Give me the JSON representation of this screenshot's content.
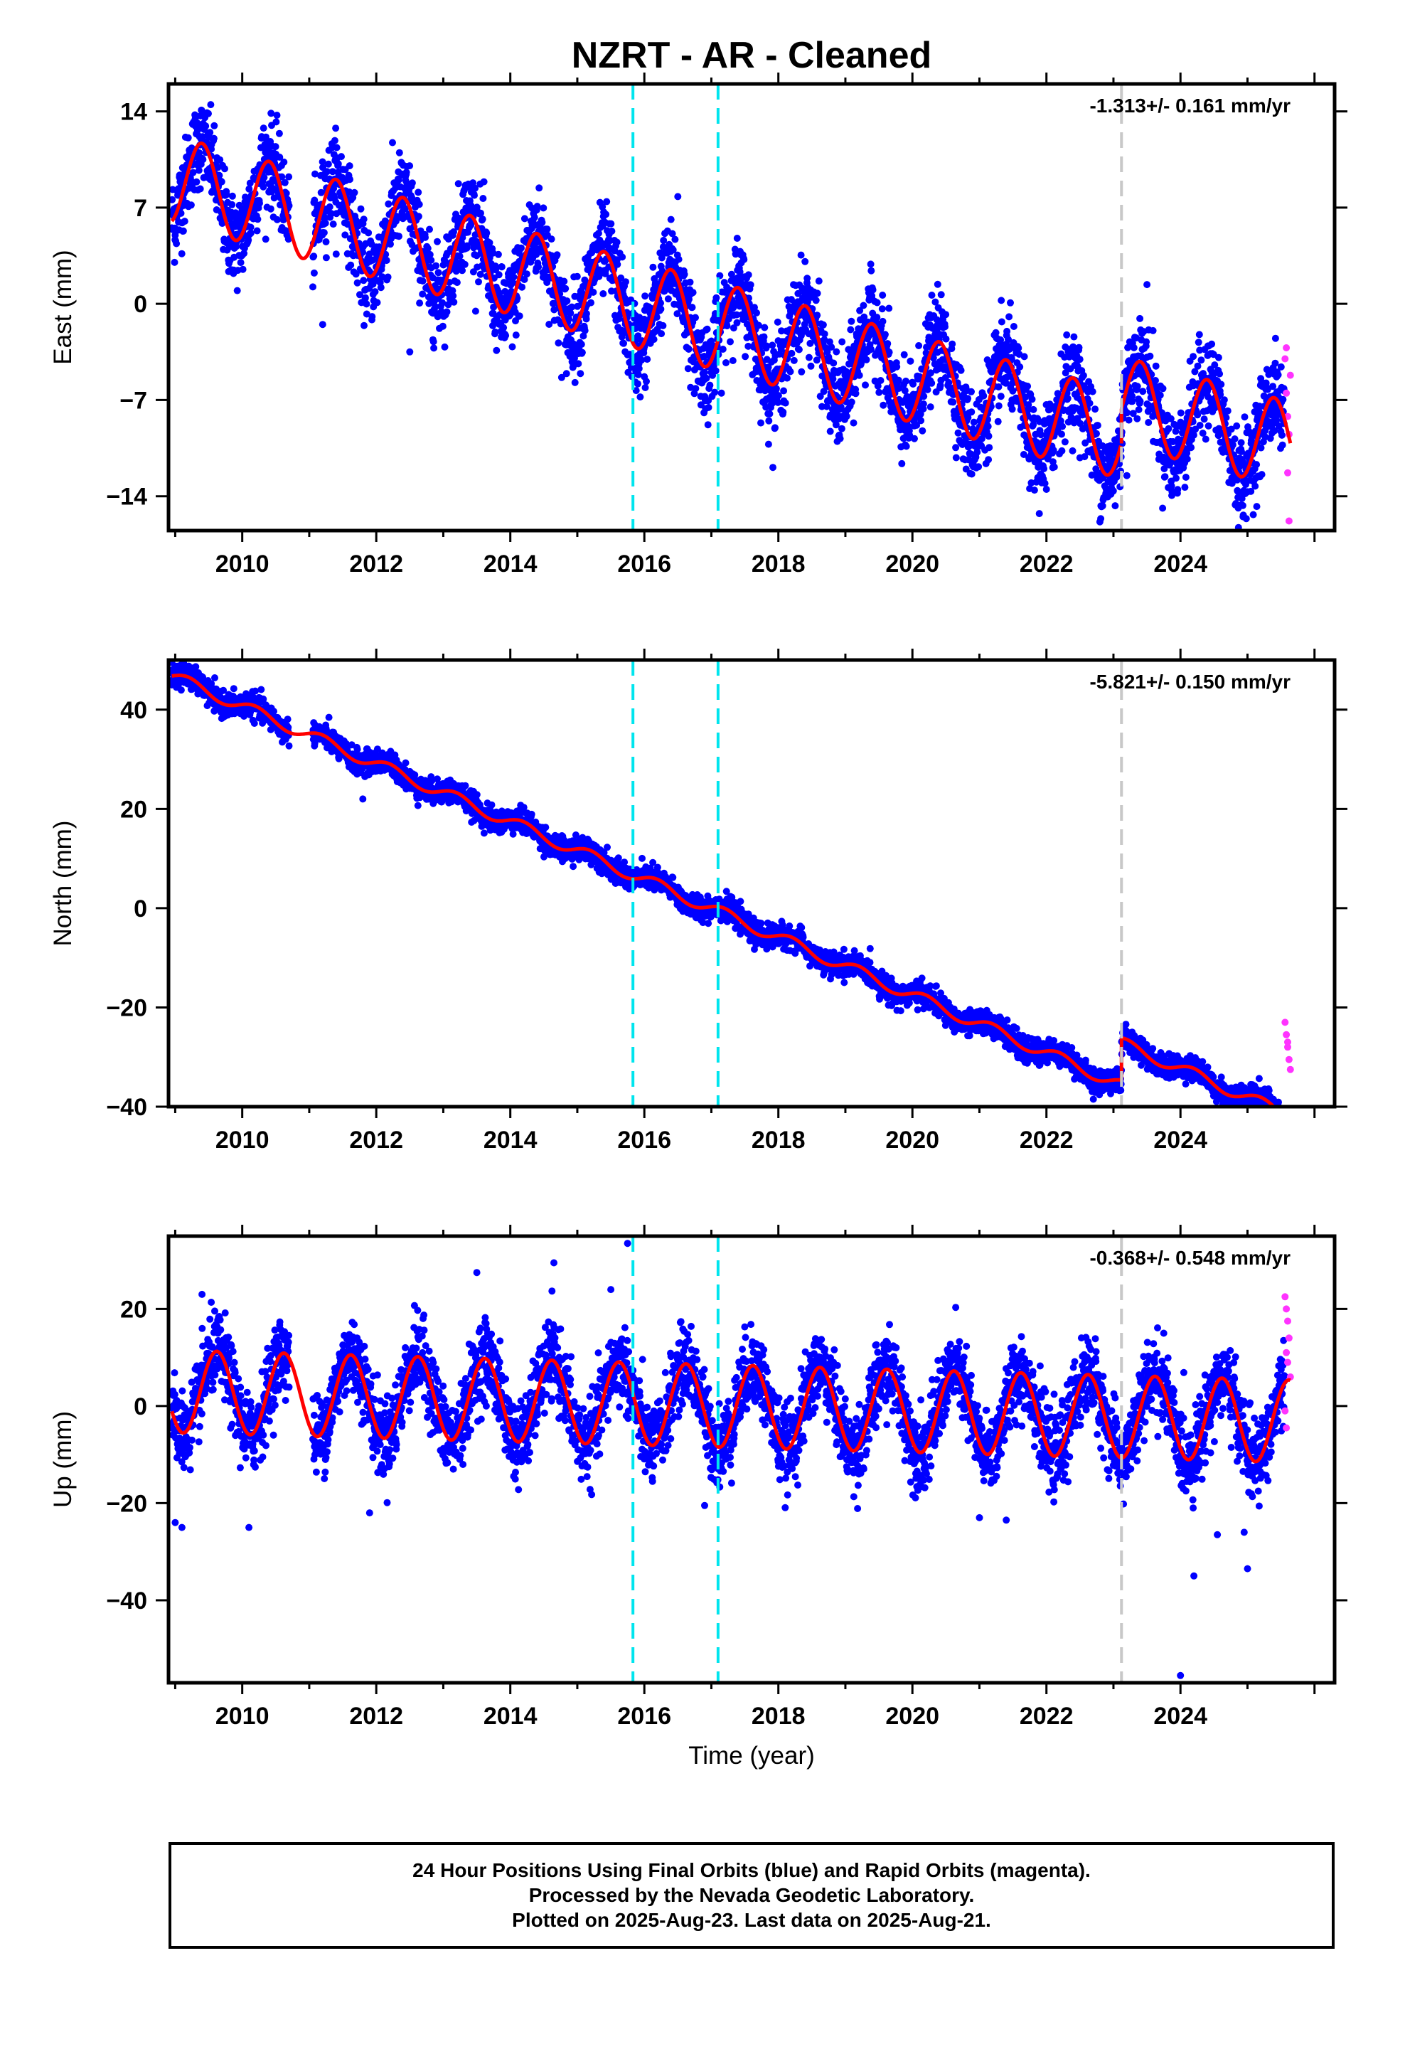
{
  "title": "NZRT  - AR - Cleaned",
  "x_axis_title": "Time (year)",
  "colors": {
    "final_orbits": "#0000ff",
    "rapid_orbits": "#ff33ff",
    "model_fit": "#ff0000",
    "equipment_change": "#00e5ee",
    "earthquake_offset": "#c8c8c8",
    "frame": "#000000"
  },
  "footer": {
    "line1": "24 Hour Positions Using Final Orbits (blue) and Rapid Orbits (magenta).",
    "line2": "Processed by the Nevada Geodetic Laboratory.",
    "line3": "Plotted on 2025-Aug-23. Last data on 2025-Aug-21."
  },
  "chart_data": [
    {
      "type": "scatter",
      "panel": "East",
      "ylabel": "East (mm)",
      "xlabel": "",
      "rate_label": "-1.313+/- 0.161 mm/yr",
      "xlim": [
        2008.9,
        2026.3
      ],
      "ylim": [
        -16.5,
        16
      ],
      "x_ticks": [
        2010,
        2012,
        2014,
        2016,
        2018,
        2020,
        2022,
        2024
      ],
      "y_ticks": [
        14,
        7,
        0,
        -7,
        -14
      ],
      "y_tick_labels": [
        "14",
        "7",
        "0",
        "−7",
        "−14"
      ],
      "vlines_cyan_dashed": [
        2015.83,
        2017.1
      ],
      "vlines_gray_dashed": [
        2023.12
      ],
      "data_start": 2008.95,
      "data_end": 2025.64,
      "gap": [
        2010.7,
        2011.05
      ],
      "rapid_start": 2025.55,
      "model": {
        "rate": -1.313,
        "intercept_year": 2009.0,
        "intercept": 9.0,
        "annual_amplitude": 3.2,
        "annual_peak": 0.4,
        "step_year": 2023.12,
        "step": 2.5
      },
      "scatter_sigma": 1.6,
      "outliers": [
        [
          2009.0,
          5.0
        ],
        [
          2011.2,
          -1.5
        ],
        [
          2012.5,
          -3.5
        ],
        [
          2016.0,
          -5.3
        ],
        [
          2016.5,
          7.8
        ],
        [
          2016.95,
          -8.8
        ],
        [
          2022.0,
          -13.5
        ],
        [
          2022.5,
          -11.2
        ],
        [
          2023.2,
          -12.5
        ],
        [
          2023.5,
          1.4
        ]
      ],
      "rapid_points": [
        [
          2025.56,
          -4.0
        ],
        [
          2025.58,
          -6.5
        ],
        [
          2025.6,
          -8.2
        ],
        [
          2025.62,
          -9.5
        ],
        [
          2025.6,
          -12.3
        ],
        [
          2025.62,
          -15.8
        ],
        [
          2025.64,
          -5.2
        ],
        [
          2025.58,
          -3.2
        ]
      ]
    },
    {
      "type": "scatter",
      "panel": "North",
      "ylabel": "North (mm)",
      "xlabel": "",
      "rate_label": "-5.821+/- 0.150 mm/yr",
      "xlim": [
        2008.9,
        2026.3
      ],
      "ylim": [
        -40,
        50
      ],
      "x_ticks": [
        2010,
        2012,
        2014,
        2016,
        2018,
        2020,
        2022,
        2024
      ],
      "y_ticks": [
        40,
        20,
        0,
        -20,
        -40
      ],
      "y_tick_labels": [
        "40",
        "20",
        "0",
        "−20",
        "−40"
      ],
      "vlines_cyan_dashed": [
        2015.83,
        2017.1
      ],
      "vlines_gray_dashed": [
        2023.12
      ],
      "data_start": 2008.95,
      "data_end": 2025.64,
      "gap": [
        2010.7,
        2011.05
      ],
      "rapid_start": 2025.55,
      "model": {
        "rate": -5.821,
        "intercept_year": 2009.0,
        "intercept": 46.5,
        "annual_amplitude": 1.2,
        "annual_peak": 0.2,
        "step_year": 2023.12,
        "step": 8.5
      },
      "scatter_sigma": 1.2,
      "outliers": [
        [
          2022.7,
          -38.5
        ],
        [
          2011.8,
          22.0
        ],
        [
          2008.95,
          49.5
        ]
      ],
      "rapid_points": [
        [
          2025.56,
          -23.0
        ],
        [
          2025.58,
          -25.5
        ],
        [
          2025.6,
          -28.0
        ],
        [
          2025.62,
          -30.5
        ],
        [
          2025.64,
          -32.5
        ],
        [
          2025.6,
          -27.0
        ]
      ]
    },
    {
      "type": "scatter",
      "panel": "Up",
      "ylabel": "Up (mm)",
      "xlabel": "Time (year)",
      "rate_label": "-0.368+/- 0.548 mm/yr",
      "xlim": [
        2008.9,
        2026.3
      ],
      "ylim": [
        -57,
        35
      ],
      "x_ticks": [
        2010,
        2012,
        2014,
        2016,
        2018,
        2020,
        2022,
        2024
      ],
      "y_ticks": [
        20,
        0,
        -20,
        -40
      ],
      "y_tick_labels": [
        "20",
        "0",
        "−20",
        "−40"
      ],
      "vlines_cyan_dashed": [
        2015.83,
        2017.1
      ],
      "vlines_gray_dashed": [
        2023.12
      ],
      "data_start": 2008.95,
      "data_end": 2025.64,
      "gap": [
        2010.7,
        2011.05
      ],
      "rapid_start": 2025.55,
      "model": {
        "rate": -0.368,
        "intercept_year": 2009.0,
        "intercept": 3.0,
        "annual_amplitude": 8.5,
        "annual_peak": 0.62,
        "step_year": 2023.12,
        "step": 0.0
      },
      "scatter_sigma": 4.0,
      "outliers": [
        [
          2009.0,
          -24.0
        ],
        [
          2009.1,
          -25.0
        ],
        [
          2009.4,
          23.0
        ],
        [
          2010.1,
          -25.0
        ],
        [
          2011.9,
          -22.0
        ],
        [
          2013.5,
          27.5
        ],
        [
          2014.65,
          29.5
        ],
        [
          2015.5,
          24.0
        ],
        [
          2015.75,
          33.5
        ],
        [
          2016.9,
          -20.5
        ],
        [
          2021.0,
          -23.0
        ],
        [
          2021.4,
          -23.5
        ],
        [
          2024.0,
          -55.5
        ],
        [
          2024.2,
          -35.0
        ],
        [
          2024.55,
          -26.5
        ],
        [
          2024.95,
          -26.0
        ],
        [
          2025.0,
          -33.5
        ],
        [
          2023.75,
          15.0
        ]
      ],
      "rapid_points": [
        [
          2025.56,
          22.5
        ],
        [
          2025.58,
          20.0
        ],
        [
          2025.6,
          17.5
        ],
        [
          2025.62,
          14.0
        ],
        [
          2025.58,
          11.0
        ],
        [
          2025.6,
          9.0
        ],
        [
          2025.56,
          -1.0
        ],
        [
          2025.58,
          -4.5
        ],
        [
          2025.64,
          6.0
        ]
      ]
    }
  ]
}
